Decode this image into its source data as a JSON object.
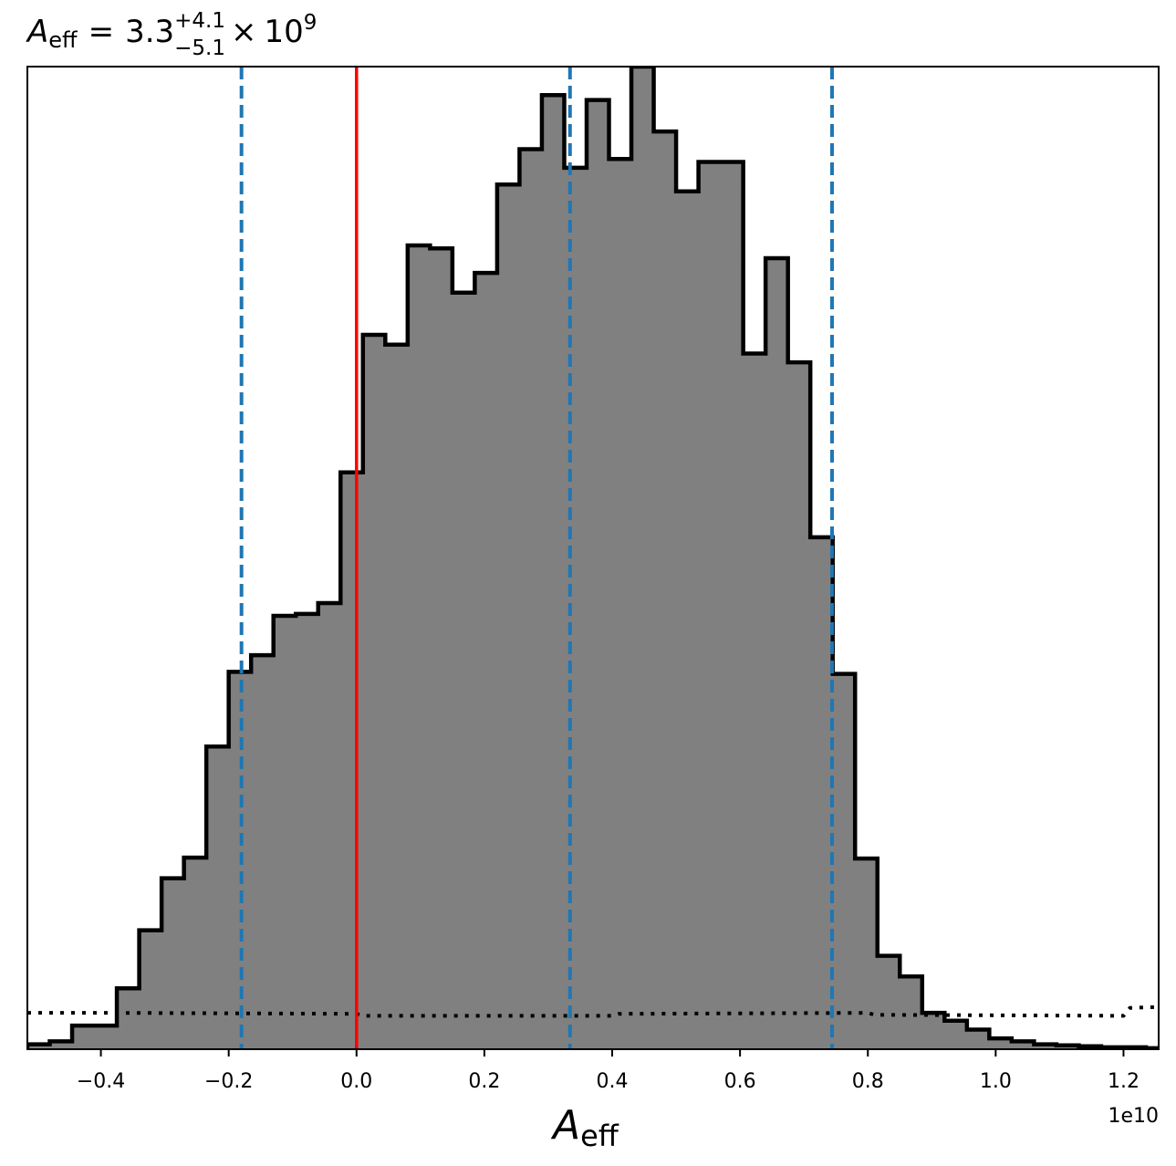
{
  "chart_data": {
    "type": "histogram",
    "title": {
      "symbol": "A",
      "symbol_sub": "eff",
      "equals": "=",
      "median": "3.3",
      "err_plus": "+4.1",
      "err_minus": "−5.1",
      "times": "×",
      "power_base": "10",
      "power_exp": "9"
    },
    "xlabel": {
      "symbol": "A",
      "sub": "eff"
    },
    "x_offset_label": "1e10",
    "xlim": [
      -0.515,
      1.255
    ],
    "ylim": [
      0,
      1.0
    ],
    "x_ticks": [
      {
        "value": -0.4,
        "label": "−0.4"
      },
      {
        "value": -0.2,
        "label": "−0.2"
      },
      {
        "value": 0.0,
        "label": "0.0"
      },
      {
        "value": 0.2,
        "label": "0.2"
      },
      {
        "value": 0.4,
        "label": "0.4"
      },
      {
        "value": 0.6,
        "label": "0.6"
      },
      {
        "value": 0.8,
        "label": "0.8"
      },
      {
        "value": 1.0,
        "label": "1.0"
      },
      {
        "value": 1.2,
        "label": "1.2"
      }
    ],
    "bin_edges": [
      -0.515,
      -0.48,
      -0.445,
      -0.41,
      -0.375,
      -0.34,
      -0.305,
      -0.27,
      -0.235,
      -0.2,
      -0.165,
      -0.13,
      -0.095,
      -0.06,
      -0.025,
      0.01,
      0.045,
      0.08,
      0.115,
      0.15,
      0.185,
      0.22,
      0.255,
      0.29,
      0.325,
      0.36,
      0.395,
      0.43,
      0.465,
      0.5,
      0.535,
      0.57,
      0.605,
      0.64,
      0.675,
      0.71,
      0.745,
      0.78,
      0.815,
      0.85,
      0.885,
      0.92,
      0.955,
      0.99,
      1.025,
      1.06,
      1.095,
      1.13,
      1.165,
      1.2,
      1.235,
      1.255
    ],
    "counts": [
      0.005,
      0.008,
      0.024,
      0.024,
      0.062,
      0.121,
      0.174,
      0.195,
      0.308,
      0.384,
      0.401,
      0.441,
      0.443,
      0.454,
      0.587,
      0.727,
      0.717,
      0.818,
      0.815,
      0.77,
      0.79,
      0.88,
      0.916,
      0.971,
      0.897,
      0.966,
      0.906,
      1.0,
      0.934,
      0.873,
      0.903,
      0.903,
      0.708,
      0.805,
      0.699,
      0.521,
      0.382,
      0.194,
      0.095,
      0.074,
      0.037,
      0.029,
      0.02,
      0.011,
      0.008,
      0.005,
      0.004,
      0.003,
      0.002,
      0.002,
      0.001
    ],
    "prior_line": {
      "style": "dotted",
      "color": "#000000",
      "points": [
        [
          -0.515,
          0.037
        ],
        [
          -0.375,
          0.037
        ],
        [
          0.0,
          0.036
        ],
        [
          0.01,
          0.034
        ],
        [
          0.4,
          0.034
        ],
        [
          0.41,
          0.036
        ],
        [
          0.8,
          0.037
        ],
        [
          0.81,
          0.035
        ],
        [
          1.2,
          0.034
        ],
        [
          1.21,
          0.042
        ],
        [
          1.255,
          0.043
        ]
      ]
    },
    "quantile_lines": {
      "color": "#1f77b4",
      "style": "dashed",
      "values": [
        -0.18,
        0.334,
        0.744
      ]
    },
    "truth_line": {
      "color": "#ff0000",
      "value": 0.0
    },
    "colors": {
      "fill": "#808080",
      "edge": "#000000"
    }
  }
}
